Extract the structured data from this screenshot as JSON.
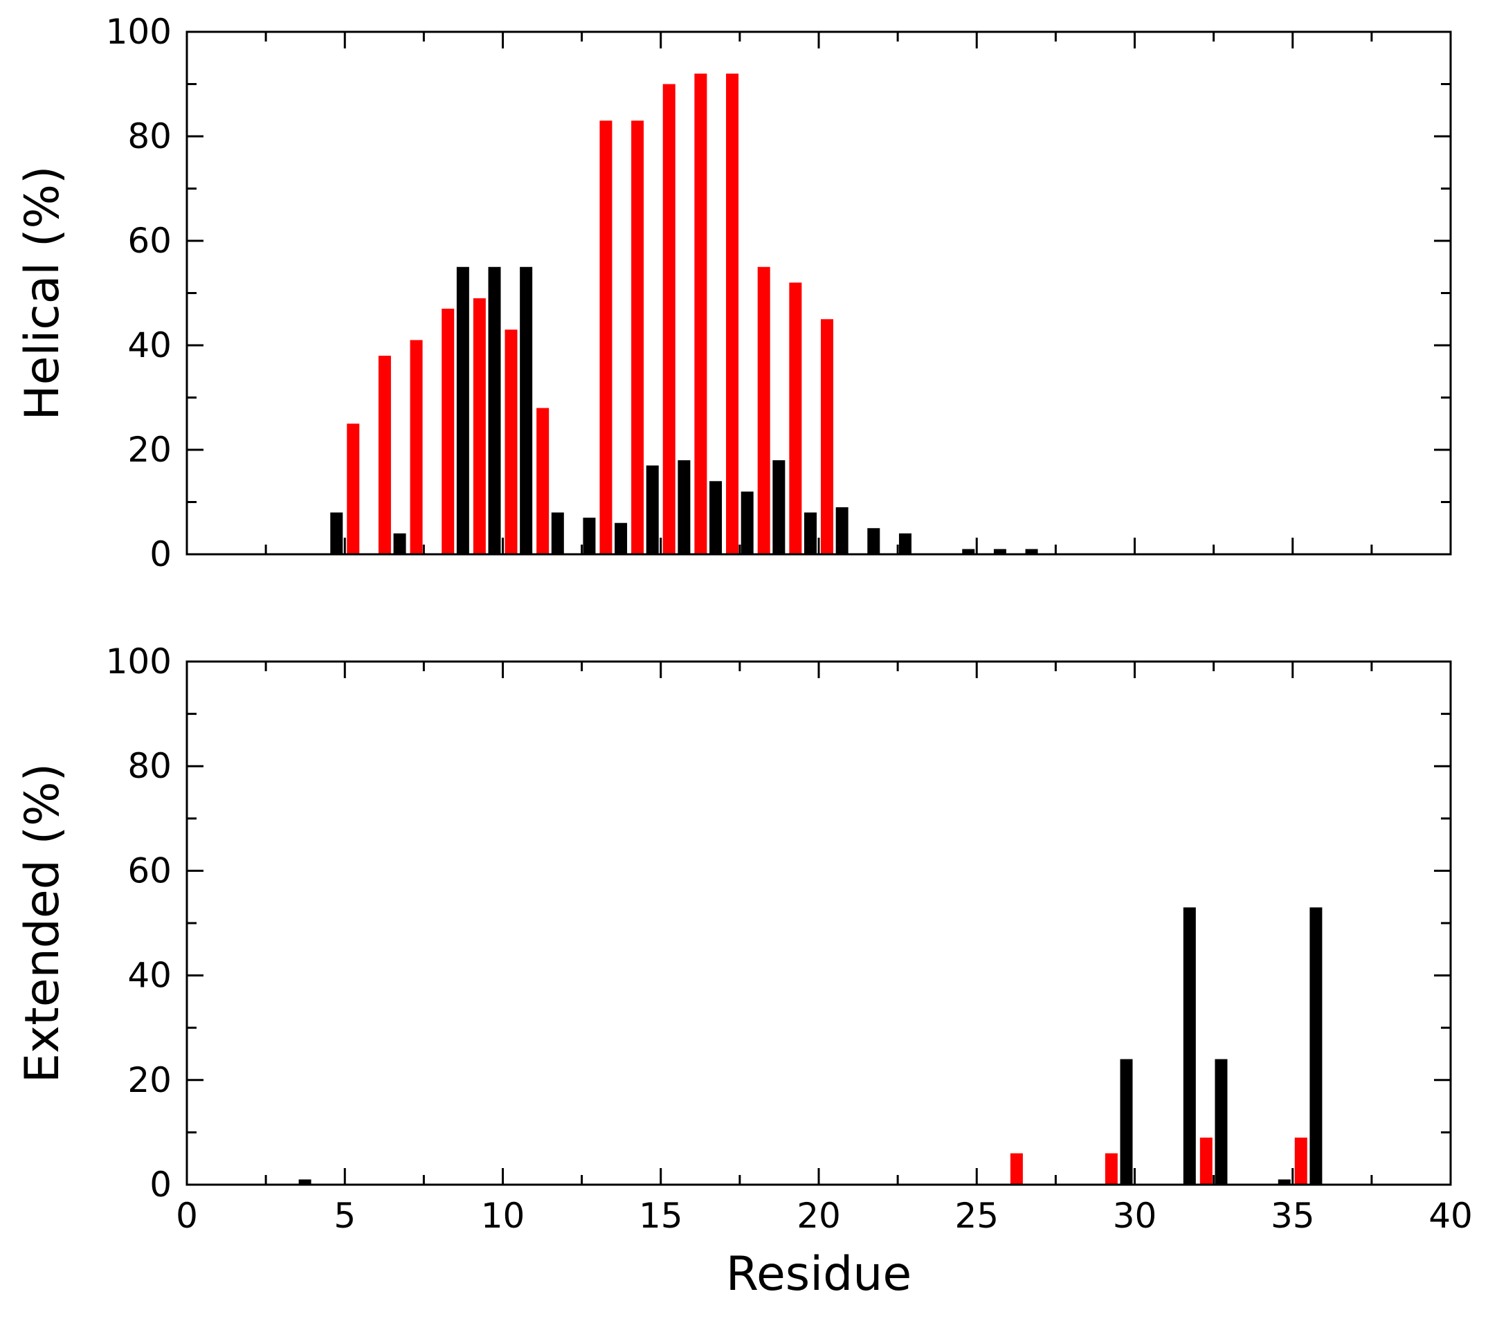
{
  "colors": {
    "black_series": "#000000",
    "red_series": "#ff0000",
    "frame": "#000000",
    "background": "#ffffff"
  },
  "chart_data": [
    {
      "type": "bar",
      "panel": "top",
      "xlabel": "",
      "ylabel": "Helical (%)",
      "xlim": [
        0,
        40
      ],
      "ylim": [
        0,
        100
      ],
      "xticks": [
        "0",
        "5",
        "10",
        "15",
        "20",
        "25",
        "30",
        "35",
        "40"
      ],
      "yticks": [
        "0",
        "20",
        "40",
        "60",
        "80",
        "100"
      ],
      "show_x_tick_labels": false,
      "grid": false,
      "legend": "none",
      "series": [
        {
          "color": "#000000",
          "points": [
            {
              "x": 5,
              "y": 8
            },
            {
              "x": 7,
              "y": 4
            },
            {
              "x": 9,
              "y": 55
            },
            {
              "x": 10,
              "y": 55
            },
            {
              "x": 11,
              "y": 55
            },
            {
              "x": 12,
              "y": 8
            },
            {
              "x": 13,
              "y": 7
            },
            {
              "x": 14,
              "y": 6
            },
            {
              "x": 15,
              "y": 17
            },
            {
              "x": 16,
              "y": 18
            },
            {
              "x": 17,
              "y": 14
            },
            {
              "x": 18,
              "y": 12
            },
            {
              "x": 19,
              "y": 18
            },
            {
              "x": 20,
              "y": 8
            },
            {
              "x": 21,
              "y": 9
            },
            {
              "x": 22,
              "y": 5
            },
            {
              "x": 23,
              "y": 4
            },
            {
              "x": 25,
              "y": 1
            },
            {
              "x": 26,
              "y": 1
            },
            {
              "x": 27,
              "y": 1
            }
          ]
        },
        {
          "color": "#ff0000",
          "points": [
            {
              "x": 5,
              "y": 25
            },
            {
              "x": 6,
              "y": 38
            },
            {
              "x": 7,
              "y": 41
            },
            {
              "x": 8,
              "y": 47
            },
            {
              "x": 9,
              "y": 49
            },
            {
              "x": 10,
              "y": 43
            },
            {
              "x": 11,
              "y": 28
            },
            {
              "x": 13,
              "y": 83
            },
            {
              "x": 14,
              "y": 83
            },
            {
              "x": 15,
              "y": 90
            },
            {
              "x": 16,
              "y": 92
            },
            {
              "x": 17,
              "y": 92
            },
            {
              "x": 18,
              "y": 55
            },
            {
              "x": 19,
              "y": 52
            },
            {
              "x": 20,
              "y": 45
            }
          ]
        }
      ]
    },
    {
      "type": "bar",
      "panel": "bottom",
      "xlabel": "Residue",
      "ylabel": "Extended (%)",
      "xlim": [
        0,
        40
      ],
      "ylim": [
        0,
        100
      ],
      "xticks": [
        "0",
        "5",
        "10",
        "15",
        "20",
        "25",
        "30",
        "35",
        "40"
      ],
      "yticks": [
        "0",
        "20",
        "40",
        "60",
        "80",
        "100"
      ],
      "show_x_tick_labels": true,
      "grid": false,
      "legend": "none",
      "series": [
        {
          "color": "#000000",
          "points": [
            {
              "x": 4,
              "y": 1
            },
            {
              "x": 30,
              "y": 24
            },
            {
              "x": 32,
              "y": 53
            },
            {
              "x": 33,
              "y": 24
            },
            {
              "x": 35,
              "y": 1
            },
            {
              "x": 36,
              "y": 53
            }
          ]
        },
        {
          "color": "#ff0000",
          "points": [
            {
              "x": 26,
              "y": 6
            },
            {
              "x": 29,
              "y": 6
            },
            {
              "x": 32,
              "y": 9
            },
            {
              "x": 35,
              "y": 9
            }
          ]
        }
      ]
    }
  ]
}
